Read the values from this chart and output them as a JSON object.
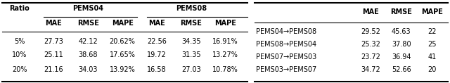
{
  "left_table": {
    "col_headers": [
      "MAE",
      "RMSE",
      "MAPE",
      "MAE",
      "RMSE",
      "MAPE"
    ],
    "group_headers": [
      [
        "PEMS04",
        0,
        2
      ],
      [
        "PEMS08",
        3,
        5
      ]
    ],
    "row_labels": [
      "5%",
      "10%",
      "20%"
    ],
    "rows": [
      [
        "27.73",
        "42.12",
        "20.62%",
        "22.56",
        "34.35",
        "16.91%"
      ],
      [
        "25.11",
        "38.68",
        "17.65%",
        "19.72",
        "31.35",
        "13.27%"
      ],
      [
        "21.16",
        "34.03",
        "13.92%",
        "16.58",
        "27.03",
        "10.78%"
      ]
    ]
  },
  "right_table": {
    "col_headers": [
      "MAE",
      "RMSE",
      "MAPE"
    ],
    "row_labels": [
      "PEMS04→PEMS08",
      "PEMS08→PEMS04",
      "PEMS07→PEMS03",
      "PEMS03→PEMS07"
    ],
    "rows": [
      [
        "29.52",
        "45.63",
        "22"
      ],
      [
        "25.32",
        "37.80",
        "25"
      ],
      [
        "23.72",
        "36.94",
        "41"
      ],
      [
        "34.72",
        "52.66",
        "20"
      ]
    ]
  },
  "bg_color": "#ffffff",
  "fontsize": 7.0
}
